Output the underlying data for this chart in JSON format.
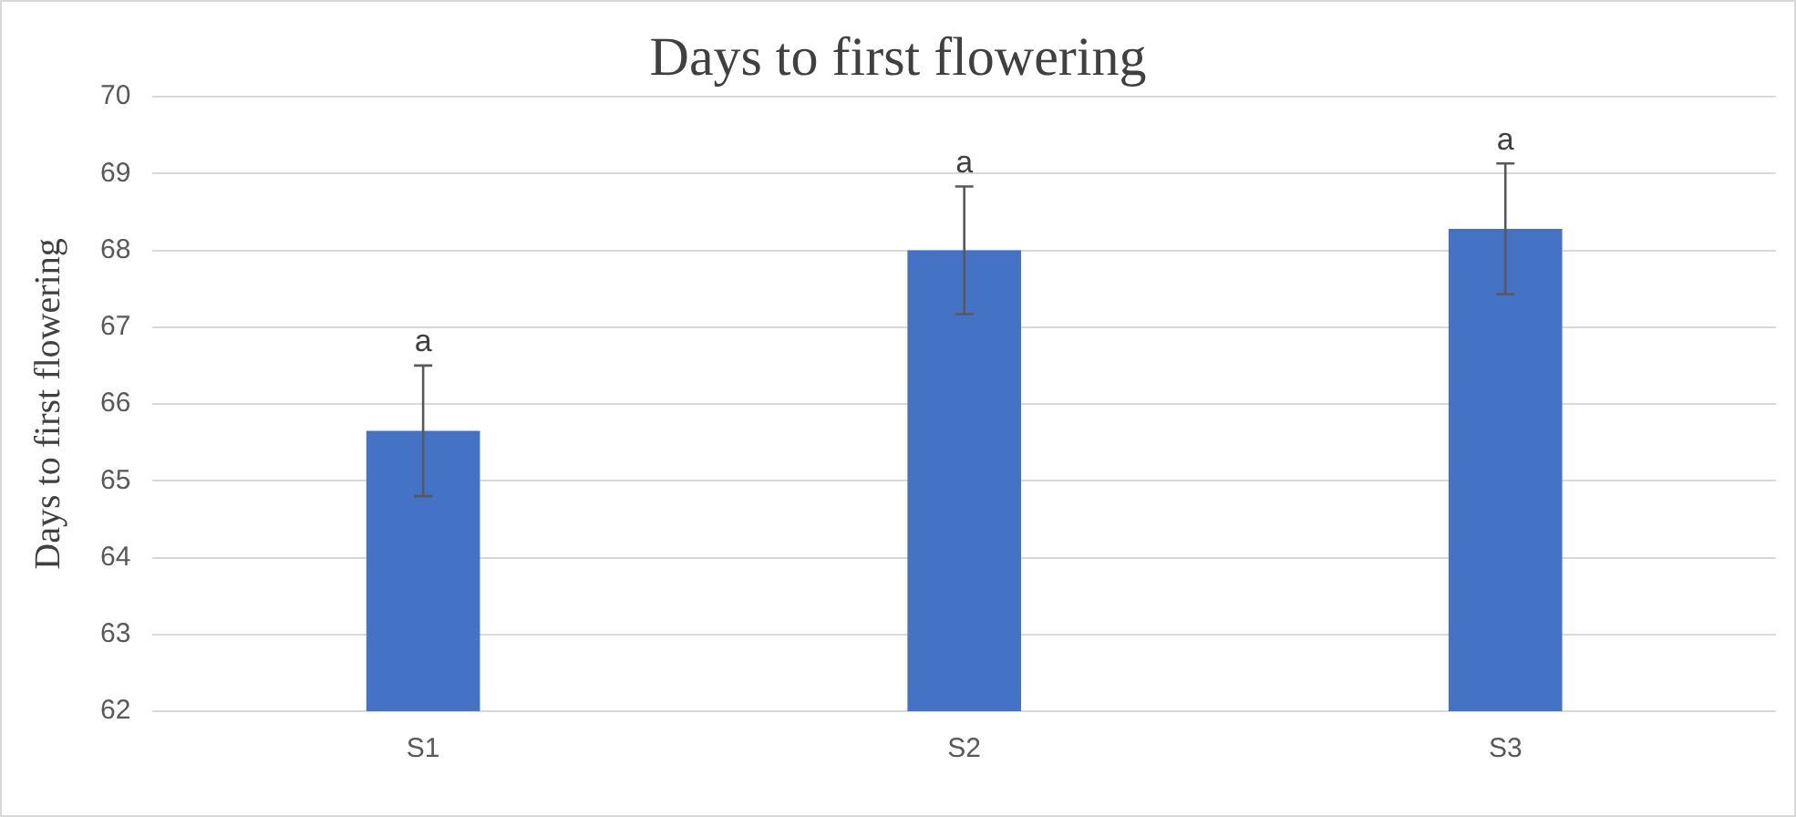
{
  "chart_data": {
    "type": "bar",
    "title": "Days to first flowering",
    "ylabel": "Days to first flowering",
    "categories": [
      "S1",
      "S2",
      "S3"
    ],
    "values": [
      65.65,
      68.0,
      68.28
    ],
    "color": "#4472c4",
    "errors": [
      0.85,
      0.83,
      0.85
    ],
    "ylim": [
      62,
      70
    ],
    "yticks": [
      62,
      63,
      64,
      65,
      66,
      67,
      68,
      69,
      70
    ],
    "grid": "y",
    "legend": false,
    "annotations": [
      {
        "text": "a",
        "x": "S1",
        "y": 66.5
      },
      {
        "text": "a",
        "x": "S2",
        "y": 68.83
      },
      {
        "text": "a",
        "x": "S3",
        "y": 69.13
      }
    ]
  }
}
